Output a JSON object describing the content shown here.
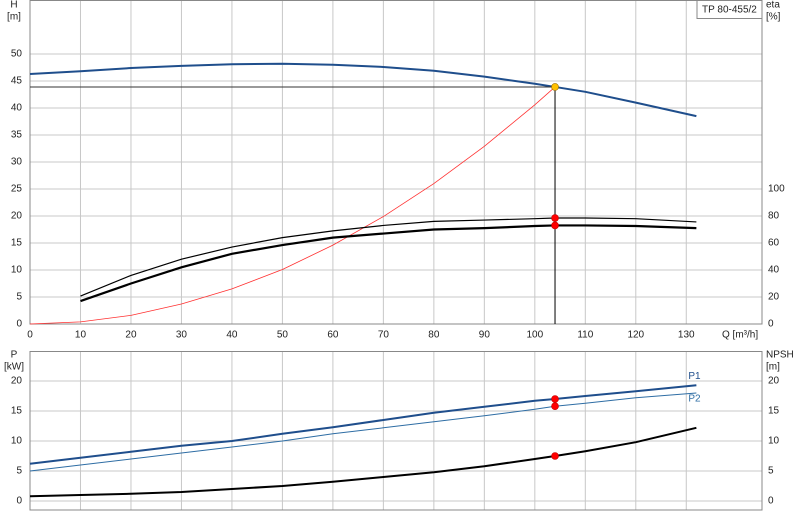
{
  "chart_data": [
    {
      "type": "line",
      "title": "TP 80-455/2",
      "y_label": "H",
      "y_unit": "[m]",
      "y2_label": "eta",
      "y2_unit": "[%]",
      "x_label": "Q [m³/h]",
      "xlim": [
        0,
        145
      ],
      "xticks": [
        0,
        10,
        20,
        30,
        40,
        50,
        60,
        70,
        80,
        90,
        100,
        110,
        120,
        130
      ],
      "ylim": [
        0,
        60
      ],
      "yticks": [
        0,
        5,
        10,
        15,
        20,
        25,
        30,
        35,
        40,
        45,
        50
      ],
      "y2lim": [
        0,
        240
      ],
      "y2ticks": [
        0,
        20,
        40,
        60,
        80,
        100
      ],
      "grid": true,
      "duty_flow": 104,
      "duty_lines": true,
      "series": [
        {
          "color": "#1f4e8c",
          "width": 2,
          "marker": "#ffc000",
          "x": [
            0,
            10,
            20,
            30,
            40,
            50,
            60,
            70,
            80,
            90,
            100,
            104,
            110,
            120,
            132
          ],
          "values": [
            46.3,
            46.8,
            47.4,
            47.8,
            48.1,
            48.2,
            48.0,
            47.6,
            46.9,
            45.8,
            44.5,
            43.9,
            43.0,
            41.0,
            38.5
          ]
        },
        {
          "color": "#ff3030",
          "width": 0.8,
          "x": [
            0,
            10,
            20,
            30,
            40,
            50,
            60,
            70,
            80,
            90,
            100,
            104
          ],
          "values": [
            0,
            0.4,
            1.6,
            3.7,
            6.5,
            10.1,
            14.6,
            19.9,
            26.0,
            32.9,
            40.6,
            43.9
          ]
        },
        {
          "color": "#000000",
          "width": 1.2,
          "axis": "y2",
          "marker": "#ff0000",
          "x": [
            10,
            20,
            30,
            40,
            50,
            60,
            70,
            80,
            90,
            100,
            104,
            110,
            120,
            132
          ],
          "values": [
            20.7,
            36,
            48,
            57,
            64,
            69,
            73,
            76,
            77,
            78,
            78.5,
            78.5,
            78,
            75.6
          ]
        },
        {
          "color": "#000000",
          "width": 2.2,
          "axis": "y2",
          "marker": "#ff0000",
          "x": [
            10,
            20,
            30,
            40,
            50,
            60,
            70,
            80,
            90,
            100,
            104,
            110,
            120,
            132
          ],
          "values": [
            17,
            30,
            42,
            52,
            58.5,
            64,
            67,
            70,
            71,
            72.6,
            73,
            73,
            72.6,
            71
          ]
        }
      ]
    },
    {
      "type": "line",
      "y_label": "P",
      "y_unit": "[kW]",
      "y2_label": "NPSH",
      "y2_unit": "[m]",
      "xlim": [
        0,
        145
      ],
      "ylim": [
        -1.5,
        25
      ],
      "yticks": [
        0,
        5,
        10,
        15,
        20
      ],
      "y2lim": [
        -1.5,
        25
      ],
      "y2ticks": [
        0,
        5,
        10,
        15,
        20
      ],
      "grid": true,
      "duty_flow": 104,
      "series": [
        {
          "name": "P1",
          "color": "#1f4e8c",
          "width": 2,
          "marker": "#ff0000",
          "x": [
            0,
            10,
            20,
            30,
            40,
            50,
            60,
            70,
            80,
            90,
            100,
            104,
            110,
            120,
            132
          ],
          "values": [
            6.2,
            7.2,
            8.2,
            9.2,
            10.0,
            11.2,
            12.3,
            13.5,
            14.7,
            15.7,
            16.7,
            17.0,
            17.5,
            18.3,
            19.3
          ]
        },
        {
          "name": "P2",
          "color": "#2e6da4",
          "width": 1,
          "marker": "#ff0000",
          "x": [
            0,
            10,
            20,
            30,
            40,
            50,
            60,
            70,
            80,
            90,
            100,
            104,
            110,
            120,
            132
          ],
          "values": [
            5.0,
            6.0,
            7.0,
            8.0,
            9.0,
            10.0,
            11.2,
            12.2,
            13.2,
            14.2,
            15.3,
            15.8,
            16.3,
            17.2,
            18.0
          ]
        },
        {
          "color": "#000000",
          "width": 2,
          "axis": "y2",
          "marker": "#ff0000",
          "x": [
            0,
            10,
            20,
            30,
            40,
            50,
            60,
            70,
            80,
            90,
            100,
            104,
            110,
            120,
            132
          ],
          "values": [
            0.8,
            1.0,
            1.2,
            1.5,
            2.0,
            2.5,
            3.2,
            4.0,
            4.8,
            5.8,
            7.0,
            7.5,
            8.3,
            9.8,
            12.2
          ]
        }
      ]
    }
  ]
}
